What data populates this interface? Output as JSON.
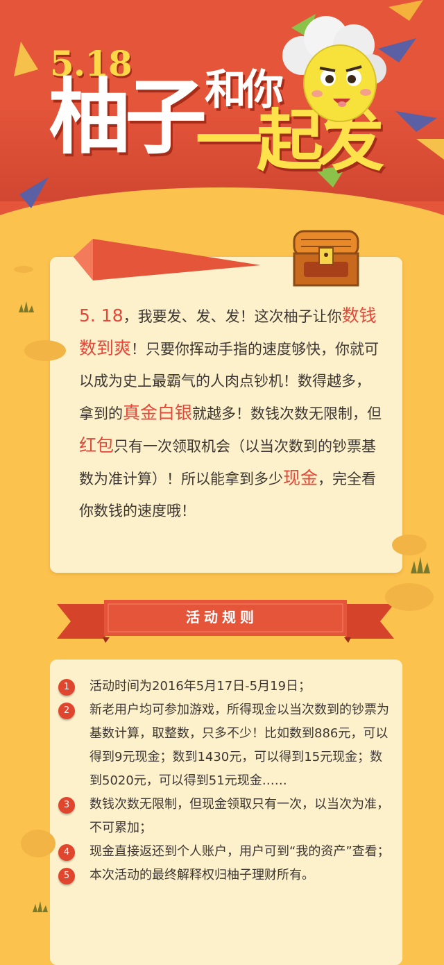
{
  "header": {
    "date": "5.18",
    "title_main": "柚子",
    "title_and": "和你",
    "title_rise": "一起发"
  },
  "intro": {
    "p1": "5. 18",
    "p2": "，我要发、发、发！这次柚子让你",
    "p3": "数钱数到爽",
    "p4": "！只要你挥动手指的速度够快，你就可以成为史上最霸气的人肉点钞机！数得越多，拿到的",
    "p5": "真金白银",
    "p6": "就越多！数钱次数无限制，但",
    "p7": "红包",
    "p8": "只有一次领取机会（以当次数到的钞票基数为准计算）！所以能拿到多少",
    "p9": "现金",
    "p10": "，完全看你数钱的速度哦！"
  },
  "rules_section": {
    "title": "活动规则",
    "items": [
      {
        "num": "1",
        "text": "活动时间为2016年5月17日-5月19日；"
      },
      {
        "num": "2",
        "text": "新老用户均可参加游戏，所得现金以当次数到的钞票为基数计算，取整数，只多不少！比如数到886元，可以得到9元现金；数到1430元，可以得到15元现金；数到5020元，可以得到51元现金……"
      },
      {
        "num": "3",
        "text": "数钱次数无限制，但现金领取只有一次，以当次为准，不可累加；"
      },
      {
        "num": "4",
        "text": "现金直接返还到个人账户，用户可到“我的资产”查看；"
      },
      {
        "num": "5",
        "text": "本次活动的最终解释权归柚子理财所有。"
      }
    ]
  },
  "colors": {
    "header_red": "#e4553a",
    "background_yellow": "#fcc24e",
    "card_cream": "#fdf1cb",
    "highlight_red": "#e4483a"
  },
  "icons": [
    "mascot-icon",
    "treasure-chest-icon",
    "grass-icon"
  ]
}
